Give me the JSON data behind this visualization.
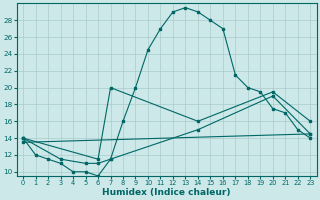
{
  "xlabel": "Humidex (Indice chaleur)",
  "bg_color": "#cce8e8",
  "grid_color": "#aacccc",
  "line_color": "#006666",
  "xlim": [
    -0.5,
    23.5
  ],
  "ylim": [
    9.5,
    30
  ],
  "yticks": [
    10,
    12,
    14,
    16,
    18,
    20,
    22,
    24,
    26,
    28
  ],
  "xticks": [
    0,
    1,
    2,
    3,
    4,
    5,
    6,
    7,
    8,
    9,
    10,
    11,
    12,
    13,
    14,
    15,
    16,
    17,
    18,
    19,
    20,
    21,
    22,
    23
  ],
  "line1_x": [
    0,
    1,
    2,
    3,
    4,
    5,
    6,
    7,
    8,
    9,
    10,
    11,
    12,
    13,
    14,
    15,
    16,
    17,
    18,
    19,
    20,
    21,
    22,
    23
  ],
  "line1_y": [
    14,
    12,
    11.5,
    11,
    10,
    10,
    9.5,
    11.5,
    16,
    20,
    24.5,
    27,
    29,
    29.5,
    29,
    28,
    27,
    21.5,
    20,
    19.5,
    17.5,
    17,
    15,
    14
  ],
  "line2_x": [
    0,
    6,
    7,
    14,
    20,
    23
  ],
  "line2_y": [
    14,
    11.5,
    20,
    16,
    19.5,
    16
  ],
  "line3_x": [
    0,
    3,
    5,
    6,
    7,
    14,
    20,
    23
  ],
  "line3_y": [
    14,
    11.5,
    11,
    11,
    11.5,
    15,
    19,
    14.5
  ],
  "line4_x": [
    0,
    23
  ],
  "line4_y": [
    13.5,
    14.5
  ]
}
